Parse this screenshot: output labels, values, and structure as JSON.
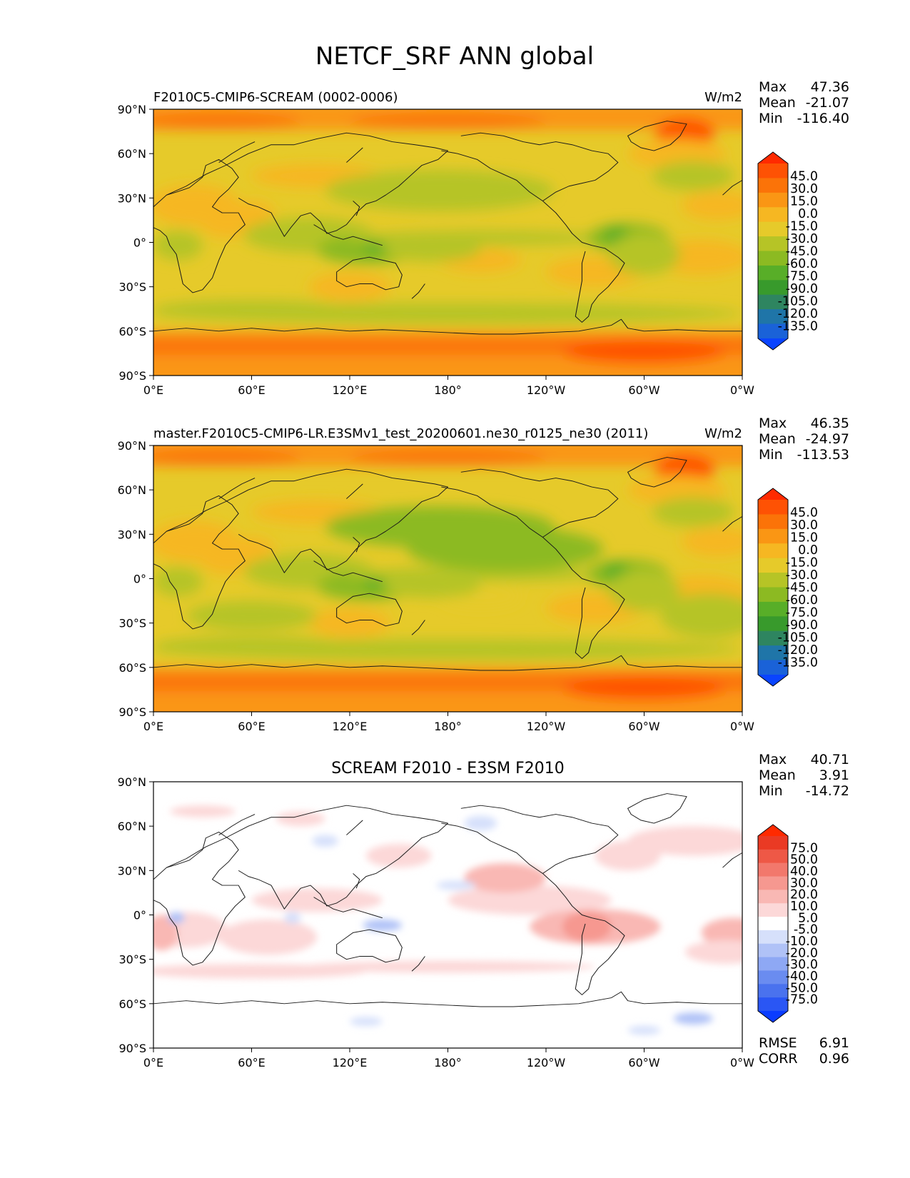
{
  "figure_title": "NETCF_SRF ANN global",
  "chart_data": [
    {
      "type": "heatmap",
      "title": "F2010C5-CMIP6-SCREAM (0002-0006)",
      "units": "W/m2",
      "stats": [
        {
          "label": "Max",
          "value": "47.36"
        },
        {
          "label": "Mean",
          "value": "-21.07"
        },
        {
          "label": "Min",
          "value": "-116.40"
        }
      ],
      "x_tick_labels": [
        "0°E",
        "60°E",
        "120°E",
        "180°",
        "120°W",
        "60°W",
        "0°W"
      ],
      "y_tick_labels": [
        "90°N",
        "60°N",
        "30°N",
        "0°",
        "30°S",
        "60°S",
        "90°S"
      ],
      "xlim": [
        0,
        360
      ],
      "ylim": [
        -90,
        90
      ],
      "colorbar": {
        "extend": "both",
        "levels": [
          -135,
          -120,
          -105,
          -90,
          -75,
          -60,
          -45,
          -30,
          -15,
          0,
          15,
          30,
          45
        ],
        "tick_labels": [
          "-135.0",
          "-120.0",
          "-105.0",
          "-90.0",
          "-75.0",
          "-60.0",
          "-45.0",
          "-30.0",
          "-15.0",
          "0.0",
          "15.0",
          "30.0",
          "45.0"
        ],
        "colors": [
          "#0a44ff",
          "#1a62d8",
          "#1f75a8",
          "#2e8560",
          "#389a2c",
          "#58ae28",
          "#8cba22",
          "#b6c426",
          "#e6ca2a",
          "#f6b722",
          "#fa9614",
          "#fb7308",
          "#fe5204",
          "#ff2a00"
        ]
      }
    },
    {
      "type": "heatmap",
      "title": "master.F2010C5-CMIP6-LR.E3SMv1_test_20200601.ne30_r0125_ne30 (2011)",
      "units": "W/m2",
      "stats": [
        {
          "label": "Max",
          "value": "46.35"
        },
        {
          "label": "Mean",
          "value": "-24.97"
        },
        {
          "label": "Min",
          "value": "-113.53"
        }
      ],
      "x_tick_labels": [
        "0°E",
        "60°E",
        "120°E",
        "180°",
        "120°W",
        "60°W",
        "0°W"
      ],
      "y_tick_labels": [
        "90°N",
        "60°N",
        "30°N",
        "0°",
        "30°S",
        "60°S",
        "90°S"
      ],
      "xlim": [
        0,
        360
      ],
      "ylim": [
        -90,
        90
      ],
      "colorbar": {
        "extend": "both",
        "levels": [
          -135,
          -120,
          -105,
          -90,
          -75,
          -60,
          -45,
          -30,
          -15,
          0,
          15,
          30,
          45
        ],
        "tick_labels": [
          "-135.0",
          "-120.0",
          "-105.0",
          "-90.0",
          "-75.0",
          "-60.0",
          "-45.0",
          "-30.0",
          "-15.0",
          "0.0",
          "15.0",
          "30.0",
          "45.0"
        ],
        "colors": [
          "#0a44ff",
          "#1a62d8",
          "#1f75a8",
          "#2e8560",
          "#389a2c",
          "#58ae28",
          "#8cba22",
          "#b6c426",
          "#e6ca2a",
          "#f6b722",
          "#fa9614",
          "#fb7308",
          "#fe5204",
          "#ff2a00"
        ]
      }
    },
    {
      "type": "heatmap",
      "title": "SCREAM F2010 - E3SM F2010",
      "units": "",
      "stats": [
        {
          "label": "Max",
          "value": "40.71"
        },
        {
          "label": "Mean",
          "value": "3.91"
        },
        {
          "label": "Min",
          "value": "-14.72"
        }
      ],
      "bottom_stats": [
        {
          "label": "RMSE",
          "value": "6.91"
        },
        {
          "label": "CORR",
          "value": "0.96"
        }
      ],
      "x_tick_labels": [
        "0°E",
        "60°E",
        "120°E",
        "180°",
        "120°W",
        "60°W",
        "0°W"
      ],
      "y_tick_labels": [
        "90°N",
        "60°N",
        "30°N",
        "0°",
        "30°S",
        "60°S",
        "90°S"
      ],
      "xlim": [
        0,
        360
      ],
      "ylim": [
        -90,
        90
      ],
      "colorbar": {
        "extend": "both",
        "levels": [
          -75,
          -50,
          -40,
          -30,
          -20,
          -10,
          -5,
          5,
          10,
          20,
          30,
          40,
          50,
          75
        ],
        "tick_labels": [
          "-75.0",
          "-50.0",
          "-40.0",
          "-30.0",
          "-20.0",
          "-10.0",
          "-5.0",
          "5.0",
          "10.0",
          "20.0",
          "30.0",
          "40.0",
          "50.0",
          "75.0"
        ],
        "colors": [
          "#0a3cff",
          "#2a56f4",
          "#4a72ee",
          "#6a8cf0",
          "#8ea8f4",
          "#b0c2f7",
          "#d6e0fb",
          "#ffffff",
          "#fcd8d8",
          "#f9b8b4",
          "#f69890",
          "#f2786c",
          "#ee5846",
          "#ea3a24",
          "#ff2a00"
        ]
      }
    }
  ]
}
